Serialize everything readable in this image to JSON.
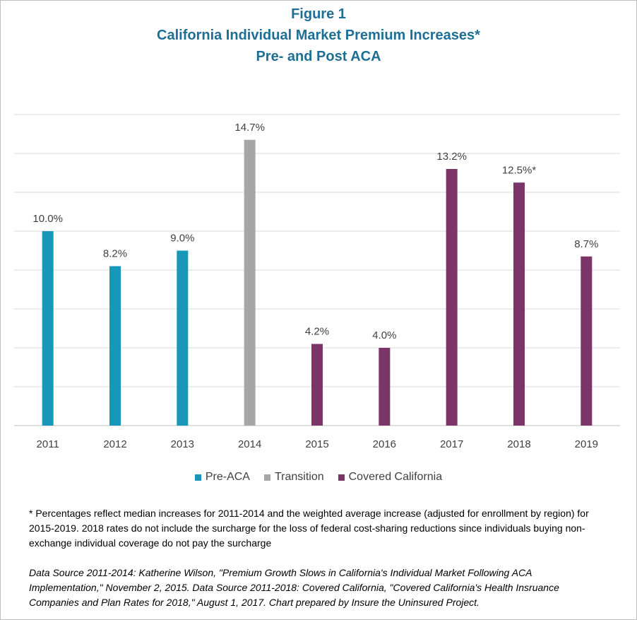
{
  "title": {
    "line1": "Figure 1",
    "line2": "California Individual Market Premium Increases*",
    "line3": "Pre- and Post ACA"
  },
  "colors": {
    "title": "#1f6e95",
    "Pre-ACA": "#1898b8",
    "Transition": "#a6a6a6",
    "Covered California": "#7b3568",
    "grid": "#d9d9d9",
    "text": "#404040"
  },
  "chart_data": {
    "type": "bar",
    "categories": [
      "2011",
      "2012",
      "2013",
      "2014",
      "2015",
      "2016",
      "2017",
      "2018",
      "2019"
    ],
    "values": [
      10.0,
      8.2,
      9.0,
      14.7,
      4.2,
      4.0,
      13.2,
      12.5,
      8.7
    ],
    "data_labels": [
      "10.0%",
      "8.2%",
      "9.0%",
      "14.7%",
      "4.2%",
      "4.0%",
      "13.2%",
      "12.5%*",
      "8.7%"
    ],
    "groups": [
      "Pre-ACA",
      "Pre-ACA",
      "Pre-ACA",
      "Transition",
      "Covered California",
      "Covered California",
      "Covered California",
      "Covered California",
      "Covered California"
    ],
    "legend": [
      "Pre-ACA",
      "Transition",
      "Covered California"
    ],
    "legend_position": "bottom",
    "ylim": [
      0,
      16
    ],
    "y_grid_step": 2,
    "grid": true,
    "xlabel": "",
    "ylabel": ""
  },
  "footnote": {
    "text": "*  Percentages reflect median increases for 2011-2014 and the weighted average increase (adjusted for enrollment by region) for 2015-2019.  2018 rates do not include the surcharge for the loss of federal cost-sharing reductions since individuals buying non-exchange individual coverage do not pay the surcharge"
  },
  "source": {
    "text": "Data Source 2011-2014:  Katherine Wilson, \"Premium Growth Slows in California's Individual Market Following ACA Implementation,\" November 2, 2015.  Data Source 2011-2018: Covered California, \"Covered California's Health Insruance Companies and Plan Rates for 2018,\" August 1, 2017. Chart prepared by Insure the Uninsured Project."
  }
}
